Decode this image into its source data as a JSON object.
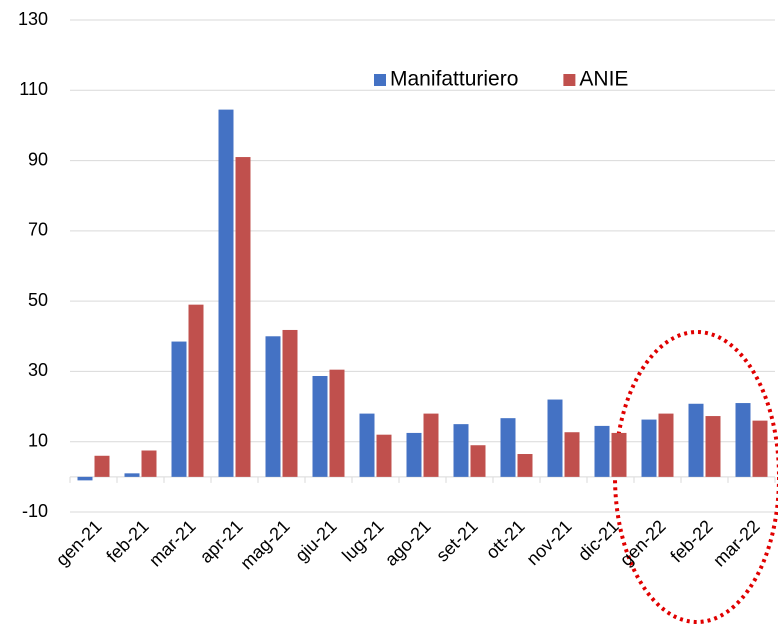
{
  "chart_data": {
    "type": "bar",
    "categories": [
      "gen-21",
      "feb-21",
      "mar-21",
      "apr-21",
      "mag-21",
      "giu-21",
      "lug-21",
      "ago-21",
      "set-21",
      "ott-21",
      "nov-21",
      "dic-21",
      "gen-22",
      "feb-22",
      "mar-22"
    ],
    "series": [
      {
        "name": "Manifatturiero",
        "color": "#4472c4",
        "values": [
          -1,
          1,
          38.5,
          104.5,
          40,
          28.7,
          18,
          12.5,
          15,
          16.7,
          22,
          14.5,
          16.3,
          20.8,
          21
        ]
      },
      {
        "name": "ANIE",
        "color": "#c0504d",
        "values": [
          6,
          7.5,
          49,
          91,
          41.8,
          30.5,
          12,
          18,
          9,
          6.5,
          12.7,
          12.5,
          18,
          17.3,
          16
        ]
      }
    ],
    "ylim": [
      -10,
      130
    ],
    "yticks": [
      -10,
      10,
      30,
      50,
      70,
      90,
      110,
      130
    ],
    "grid": true,
    "legend": "top-right"
  }
}
